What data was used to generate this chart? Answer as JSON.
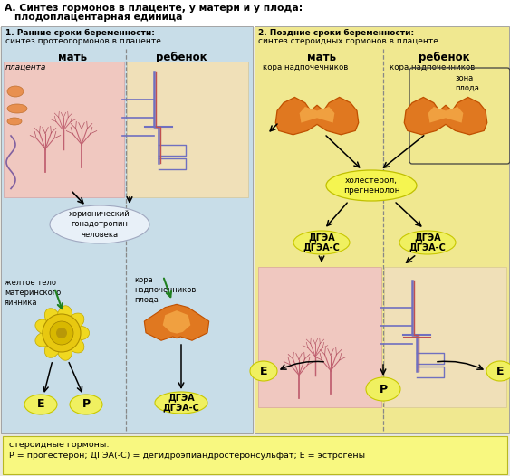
{
  "title_line1": "А. Синтез гормонов в плаценте, у матери и у плода:",
  "title_line2": "плодоплацентарная единица",
  "bg_color": "#e8e8e0",
  "header_bg": "#ffffff",
  "left_panel_bg": "#c8dde8",
  "right_panel_bg": "#f0e890",
  "left_title": "1. Ранние сроки беременности:",
  "left_subtitle": "синтез протеогормонов в плаценте",
  "right_title": "2. Поздние сроки беременности:",
  "right_subtitle": "синтез стероидных гормонов в плаценте",
  "left_mother": "мать",
  "left_child": "ребенок",
  "right_mother": "мать",
  "right_child": "ребенок",
  "placenta_lbl": "плацента",
  "hcg_lbl": "хорионический\nгонадотропин\nчеловека",
  "corpus_lbl": "желтое тело\nматеринского\nяичника",
  "adrenal_lbl": "кора\nнадпочечников\nплода",
  "r_moth_adrenal": "кора надпочечников",
  "r_chld_adrenal": "кора надпочечников",
  "zona_lbl": "зона\nплода",
  "cholesterol_lbl": "холестерол,\nпрегненолон",
  "dgea_lbl": "ДГЭА\nДГЭА-С",
  "e_lbl": "E",
  "p_lbl": "P",
  "footer_lbl": "стероидные гормоны:\nР = прогестерон; ДГЭА(-С) = дегидроэпиандростеронсульфат; Е = эстрогены",
  "footer_bg": "#f8f880",
  "orange": "#e07820",
  "dark_orange": "#c05000",
  "yellow_oval": "#f0f060",
  "yellow_oval_edge": "#c8c800",
  "green_arrow": "#208020",
  "dash_color": "#888888",
  "panel_edge": "#999999"
}
